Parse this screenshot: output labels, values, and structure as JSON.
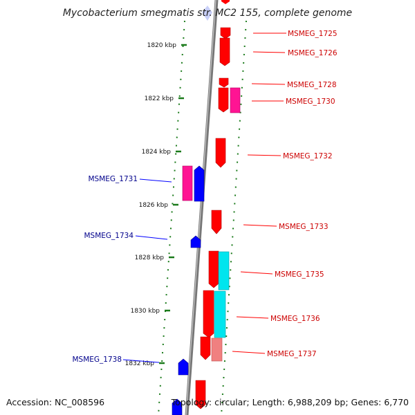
{
  "title": "Mycobacterium smegmatis str. MC2 155, complete genome",
  "footer": {
    "accession": "Accession: NC_008596",
    "topology": "Topology: circular; Length: 6,988,209 bp; Genes: 6,770"
  },
  "colors": {
    "forward_gene": "#ff0000",
    "reverse_gene": "#0000ff",
    "rna_magenta": "#ff1493",
    "cyan_feature": "#00e5ee",
    "salmon_feature": "#f08080",
    "backbone": "#808080",
    "tick": "#1a7a1a",
    "forward_label": "#cc0000",
    "reverse_label": "#00008b"
  },
  "ticks": [
    {
      "label": "1820 kbp"
    },
    {
      "label": "1822 kbp"
    },
    {
      "label": "1824 kbp"
    },
    {
      "label": "1826 kbp"
    },
    {
      "label": "1828 kbp"
    },
    {
      "label": "1830 kbp"
    },
    {
      "label": "1832 kbp"
    }
  ],
  "forward_genes": [
    {
      "label": "MSMEG_1725"
    },
    {
      "label": "MSMEG_1726"
    },
    {
      "label": "MSMEG_1728"
    },
    {
      "label": "MSMEG_1730"
    },
    {
      "label": "MSMEG_1732"
    },
    {
      "label": "MSMEG_1733"
    },
    {
      "label": "MSMEG_1735"
    },
    {
      "label": "MSMEG_1736"
    },
    {
      "label": "MSMEG_1737"
    }
  ],
  "reverse_genes": [
    {
      "label": "MSMEG_1731"
    },
    {
      "label": "MSMEG_1734"
    },
    {
      "label": "MSMEG_1738"
    }
  ]
}
